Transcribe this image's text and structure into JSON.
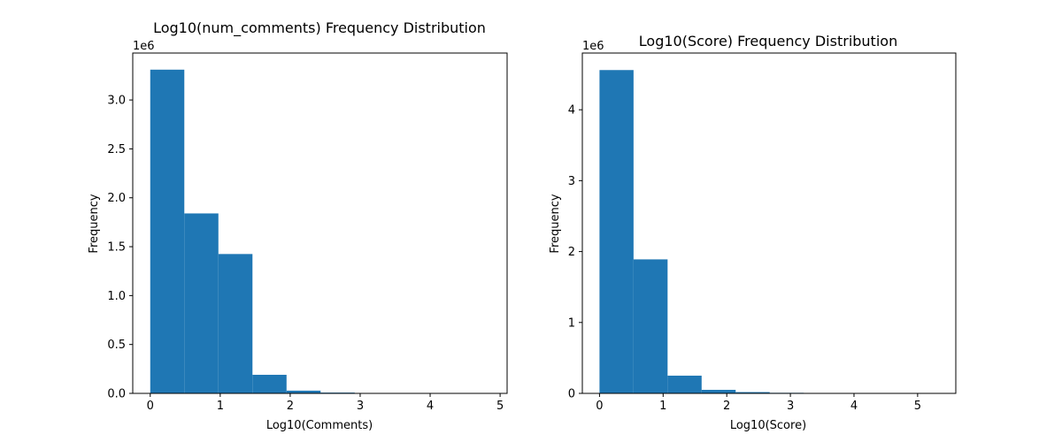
{
  "colors": {
    "bar": "#1f77b4",
    "axes": "#000000",
    "background": "#ffffff"
  },
  "chart_data": [
    {
      "type": "bar",
      "subtype": "histogram",
      "title": "Log10(num_comments) Frequency Distribution",
      "xlabel": "Log10(Comments)",
      "ylabel": "Frequency",
      "y_offset_label": "1e6",
      "xlim": [
        -0.25,
        5.1
      ],
      "ylim": [
        0,
        3480000
      ],
      "bin_edges": [
        0,
        0.487,
        0.974,
        1.461,
        1.948,
        2.435,
        2.922,
        3.409,
        3.896,
        4.383,
        4.87
      ],
      "values": [
        3310000,
        1840000,
        1425000,
        190000,
        28000,
        8000,
        3000,
        1000,
        500,
        300
      ],
      "xticks": [
        0,
        1,
        2,
        3,
        4,
        5
      ],
      "xtick_labels": [
        "0",
        "1",
        "2",
        "3",
        "4",
        "5"
      ],
      "yticks": [
        0,
        500000,
        1000000,
        1500000,
        2000000,
        2500000,
        3000000
      ],
      "ytick_labels": [
        "0.0",
        "0.5",
        "1.0",
        "1.5",
        "2.0",
        "2.5",
        "3.0"
      ],
      "grid": false,
      "legend": "none"
    },
    {
      "type": "bar",
      "subtype": "histogram",
      "title": "Log10(Score) Frequency Distribution",
      "xlabel": "Log10(Score)",
      "ylabel": "Frequency",
      "y_offset_label": "1e6",
      "xlim": [
        -0.27,
        5.6
      ],
      "ylim": [
        0,
        4800000
      ],
      "bin_edges": [
        0,
        0.535,
        1.07,
        1.605,
        2.14,
        2.675,
        3.21,
        3.745,
        4.28,
        4.815,
        5.35
      ],
      "values": [
        4560000,
        1890000,
        250000,
        50000,
        18000,
        8000,
        4000,
        1500,
        700,
        300
      ],
      "xticks": [
        0,
        1,
        2,
        3,
        4,
        5
      ],
      "xtick_labels": [
        "0",
        "1",
        "2",
        "3",
        "4",
        "5"
      ],
      "yticks": [
        0,
        1000000,
        2000000,
        3000000,
        4000000
      ],
      "ytick_labels": [
        "0",
        "1",
        "2",
        "3",
        "4"
      ],
      "grid": false,
      "legend": "none"
    }
  ]
}
